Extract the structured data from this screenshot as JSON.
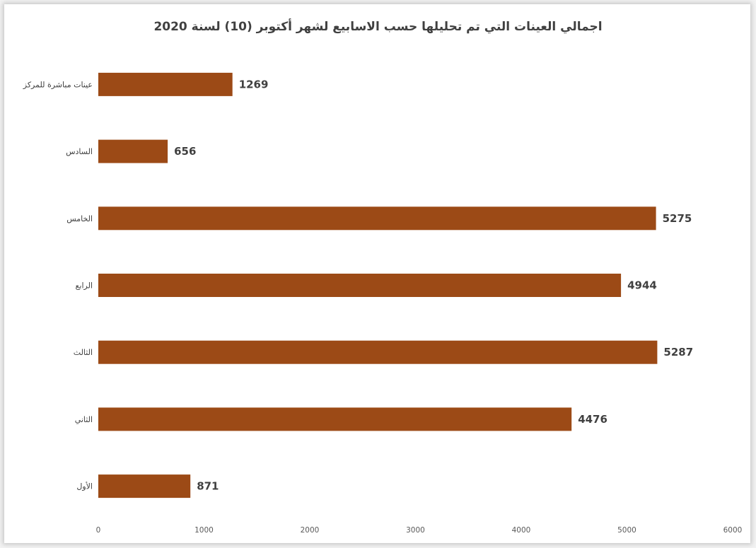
{
  "chart_data": {
    "type": "bar",
    "orientation": "horizontal",
    "title": "اجمالي العينات التي تم تحليلها حسب الاسابيع لشهر أكتوبر (10) لسنة 2020",
    "categories": [
      "عينات مباشرة للمركز",
      "السادس",
      "الخامس",
      "الرابع",
      "الثالث",
      "الثاني",
      "الأول"
    ],
    "values": [
      1269,
      656,
      5275,
      4944,
      5287,
      4476,
      871
    ],
    "xlim": [
      0,
      6000
    ],
    "xticks": [
      "0",
      "1000",
      "2000",
      "3000",
      "4000",
      "5000",
      "6000"
    ],
    "grid": false,
    "legend": "none",
    "bar_color": "#9c4a16",
    "text_color": "#404040"
  }
}
